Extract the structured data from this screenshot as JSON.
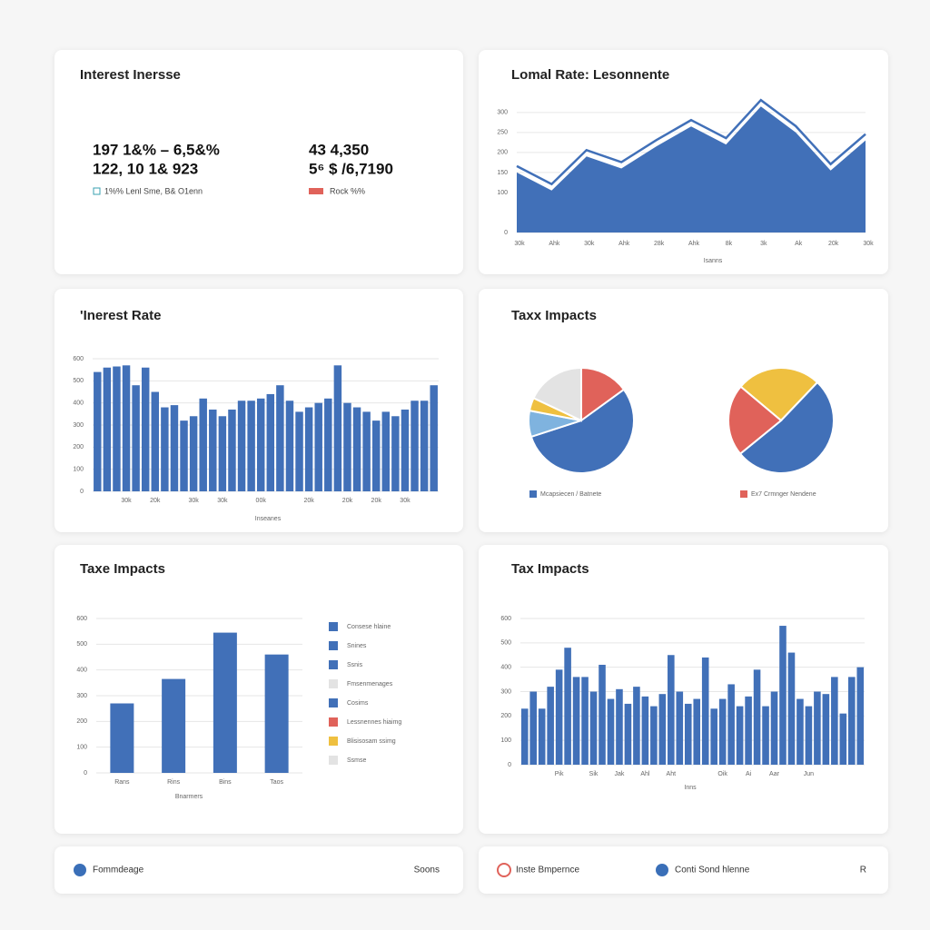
{
  "panels": [
    {
      "title": "Interest Inersse",
      "stats": [
        {
          "line1": "197 1&% – 6,5&%",
          "line2": "122, 10 1& 923",
          "note": "1%% Lenl Sme, B& O1enn"
        },
        {
          "line1": "43 4,350",
          "line2": "5⁶ $ /6,7190",
          "note": "Rock %%"
        }
      ]
    }
  ],
  "chart_data": [
    {
      "type": "area",
      "title": "Lomal Rate: Lesonnente",
      "categories": [
        "30k",
        "Ahk",
        "30k",
        "Ahk",
        "28k",
        "Ahk",
        "8k",
        "3k",
        "Ak",
        "20k",
        "30k"
      ],
      "values": [
        150,
        105,
        190,
        160,
        215,
        265,
        220,
        315,
        250,
        155,
        230
      ],
      "color": "#4170b8",
      "ylim": [
        0,
        320
      ],
      "yticks": [
        0,
        100,
        150,
        200,
        250,
        300
      ],
      "grid": true,
      "x_label": "Isanns"
    },
    {
      "type": "bar",
      "title": "'Inerest Rate",
      "categories": [
        null,
        null,
        null,
        "30k",
        null,
        null,
        "20k",
        null,
        null,
        null,
        "30k",
        null,
        null,
        "30k",
        null,
        null,
        null,
        "00k",
        null,
        null,
        null,
        null,
        "20k",
        null,
        null,
        null,
        "20k",
        null,
        null,
        "20k",
        null,
        null,
        "30k",
        null,
        null,
        null
      ],
      "values": [
        540,
        560,
        565,
        570,
        480,
        560,
        450,
        380,
        390,
        320,
        340,
        420,
        370,
        340,
        370,
        410,
        410,
        420,
        440,
        480,
        410,
        360,
        380,
        400,
        420,
        570,
        400,
        380,
        360,
        320,
        360,
        340,
        370,
        410,
        410,
        480
      ],
      "color": "#4170b8",
      "ylim": [
        0,
        600
      ],
      "yticks": [
        0,
        100,
        200,
        300,
        400,
        500,
        600
      ],
      "grid": true,
      "x_label": "Inseanes"
    },
    {
      "type": "pie",
      "title": "Taxx Impacts",
      "categories": [
        "Red",
        "Blue",
        "Light blue",
        "Yellow",
        "Gray"
      ],
      "values": [
        15,
        55,
        8,
        4,
        18
      ],
      "colors": [
        "#e0625a",
        "#4170b8",
        "#7fb3df",
        "#efc040",
        "#e3e3e3"
      ],
      "legend": "Mcapsiecen / Batnete",
      "legend_color": "#4170b8"
    },
    {
      "type": "pie",
      "categories": [
        "Yellow",
        "Blue",
        "Red"
      ],
      "values": [
        26,
        52,
        22
      ],
      "colors": [
        "#efc040",
        "#4170b8",
        "#e0625a"
      ],
      "legend": "Ex7 Crmnger Nendene",
      "legend_color": "#e0625a"
    },
    {
      "type": "bar",
      "title": "Taxe Impacts",
      "categories": [
        "Rans",
        "Rins",
        "Bins",
        "Taos"
      ],
      "values": [
        270,
        365,
        545,
        460
      ],
      "color": "#4170b8",
      "ylim": [
        0,
        600
      ],
      "yticks": [
        0,
        100,
        200,
        300,
        400,
        500,
        600
      ],
      "grid": true,
      "x_label": "Bnarmers",
      "legend_items": [
        {
          "name": "Consese hlaine",
          "color": "#4170b8"
        },
        {
          "name": "Snines",
          "color": "#4170b8"
        },
        {
          "name": "Ssnis",
          "color": "#4170b8"
        },
        {
          "name": "Fmsenmenages",
          "color": "#e3e3e3"
        },
        {
          "name": "Cosims",
          "color": "#4170b8"
        },
        {
          "name": "Lessnennes hiaimg",
          "color": "#e0625a"
        },
        {
          "name": "Blisisosam ssimg",
          "color": "#efc040"
        },
        {
          "name": "Ssmse",
          "color": "#e3e3e3"
        }
      ]
    },
    {
      "type": "bar",
      "title": "Tax Impacts",
      "categories": [
        null,
        null,
        null,
        null,
        "Pik",
        null,
        null,
        null,
        "Sik",
        null,
        null,
        "Jak",
        null,
        null,
        "Ahl",
        null,
        null,
        "Aht",
        null,
        null,
        null,
        null,
        null,
        "Oik",
        null,
        null,
        "Ai",
        null,
        null,
        "Aar",
        null,
        null,
        null,
        "Jun",
        null,
        null,
        null,
        null,
        null,
        null
      ],
      "values": [
        230,
        300,
        230,
        320,
        390,
        480,
        360,
        360,
        300,
        410,
        270,
        310,
        250,
        320,
        280,
        240,
        290,
        450,
        300,
        250,
        270,
        440,
        230,
        270,
        330,
        240,
        280,
        390,
        240,
        300,
        570,
        460,
        270,
        240,
        300,
        290,
        360,
        210,
        360,
        400
      ],
      "color": "#4170b8",
      "ylim": [
        0,
        600
      ],
      "yticks": [
        0,
        100,
        200,
        300,
        400,
        500,
        600
      ],
      "grid": true,
      "x_label": "Inns"
    }
  ],
  "footer": {
    "left": [
      "Fommdeage",
      "Soons"
    ],
    "right": [
      "Inste Bmpernce",
      "Conti Sond hlenne",
      "R"
    ]
  }
}
